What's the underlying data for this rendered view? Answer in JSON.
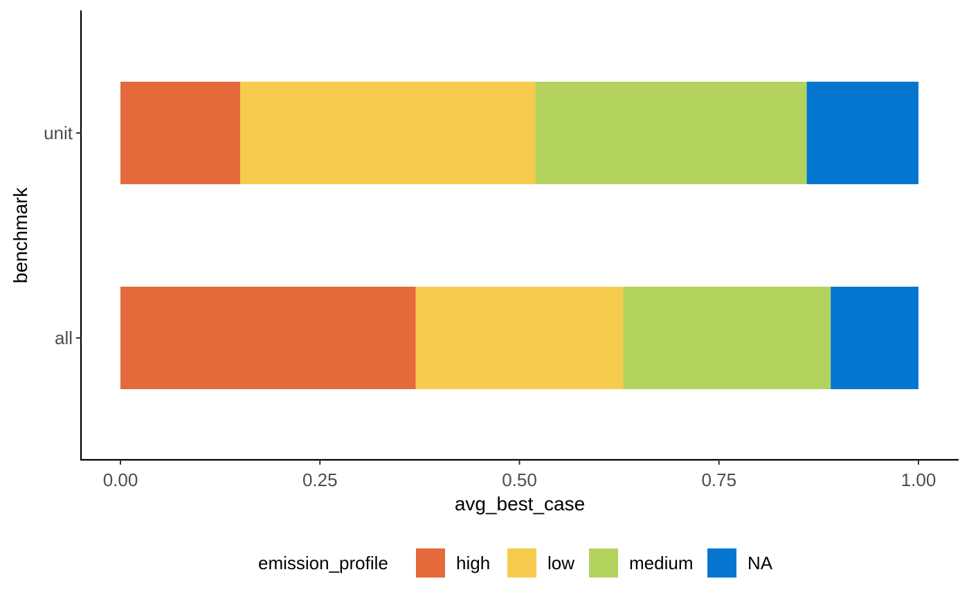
{
  "chart_data": {
    "type": "bar",
    "orientation": "horizontal",
    "stacked": true,
    "categories": [
      "all",
      "unit"
    ],
    "series": [
      {
        "name": "high",
        "color": "#E4693B",
        "values": [
          0.37,
          0.15
        ]
      },
      {
        "name": "low",
        "color": "#F6CB4E",
        "values": [
          0.26,
          0.37
        ]
      },
      {
        "name": "medium",
        "color": "#B3D35E",
        "values": [
          0.26,
          0.34
        ]
      },
      {
        "name": "NA",
        "color": "#0476D0",
        "values": [
          0.11,
          0.14
        ]
      }
    ],
    "xlabel": "avg_best_case",
    "ylabel": "benchmark",
    "xlim": [
      -0.05,
      1.05
    ],
    "xticks": [
      0,
      0.25,
      0.5,
      0.75,
      1
    ],
    "xtick_labels": [
      "0.00",
      "0.25",
      "0.50",
      "0.75",
      "1.00"
    ],
    "legend_title": "emission_profile",
    "legend_position": "bottom",
    "grid": false
  }
}
